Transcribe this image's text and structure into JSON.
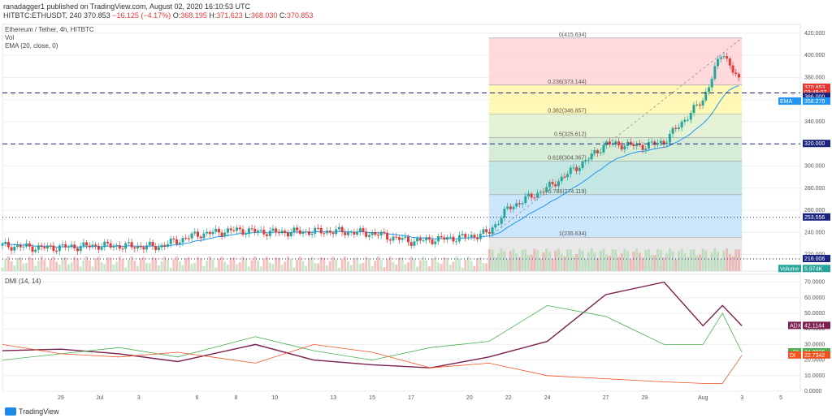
{
  "header": {
    "publisher": "ranadagger1 published on TradingView.com, August 02, 2020 16:10:53 UTC",
    "ticker": "HITBTC:ETHUSDT, 240",
    "last": "370.853",
    "change": "−16.125 (−4.17%)",
    "o_label": "O:",
    "o": "368.195",
    "h_label": "H:",
    "h": "371.623",
    "l_label": "L:",
    "l": "368.030",
    "c_label": "C:",
    "c": "370.853"
  },
  "legend": {
    "title": "Ethereum / Tether, 4h, HITBTC",
    "vol": "Vol",
    "ema": "EMA (20, close, 0)",
    "dmi": "DMI (14, 14)"
  },
  "colors": {
    "up": "#26a69a",
    "down": "#e53935",
    "hline": "#1a237e",
    "ema": "#2196f3",
    "adx": "#7b1f4f",
    "plus_di": "#4caf50",
    "minus_di": "#f4511e"
  },
  "chart_data": [
    {
      "type": "candlestick",
      "title": "Ethereum / Tether, 4h, HITBTC",
      "ylim": [
        205,
        428
      ],
      "y_ticks": [
        "420.000",
        "400.000",
        "380.000",
        "360.000",
        "340.000",
        "320.000",
        "300.000",
        "280.000",
        "260.000",
        "240.000",
        "220.000"
      ],
      "x_ticks": [
        "29",
        "Jul",
        "3",
        "6",
        "8",
        "10",
        "13",
        "15",
        "17",
        "20",
        "22",
        "24",
        "27",
        "29",
        "Aug",
        "3",
        "5"
      ],
      "x_range": [
        "2020-06-26",
        "2020-08-06"
      ],
      "ohlc_anchors": [
        {
          "x": "2020-06-26",
          "c": 228
        },
        {
          "x": "2020-06-28",
          "c": 226
        },
        {
          "x": "2020-07-01",
          "c": 228
        },
        {
          "x": "2020-07-04",
          "c": 227
        },
        {
          "x": "2020-07-06",
          "c": 238
        },
        {
          "x": "2020-07-08",
          "c": 242
        },
        {
          "x": "2020-07-10",
          "c": 240
        },
        {
          "x": "2020-07-13",
          "c": 241
        },
        {
          "x": "2020-07-15",
          "c": 239
        },
        {
          "x": "2020-07-17",
          "c": 232
        },
        {
          "x": "2020-07-20",
          "c": 236
        },
        {
          "x": "2020-07-21",
          "c": 240
        },
        {
          "x": "2020-07-22",
          "c": 262
        },
        {
          "x": "2020-07-24",
          "c": 280
        },
        {
          "x": "2020-07-26",
          "c": 305
        },
        {
          "x": "2020-07-27",
          "c": 320
        },
        {
          "x": "2020-07-29",
          "c": 318
        },
        {
          "x": "2020-07-30",
          "c": 322
        },
        {
          "x": "2020-08-01",
          "c": 360
        },
        {
          "x": "2020-08-02",
          "c": 404
        },
        {
          "x": "2020-08-03",
          "c": 371
        }
      ],
      "horizontal_lines": [
        {
          "label": "366.000",
          "value": 366.0,
          "style": "dashed"
        },
        {
          "label": "320.000",
          "value": 320.0,
          "style": "dashed"
        },
        {
          "label": "253.556",
          "value": 253.556,
          "style": "dotted"
        },
        {
          "label": "216.006",
          "value": 216.006,
          "style": "dotted"
        }
      ],
      "fibonacci": {
        "levels": [
          {
            "label": "0(415.634)",
            "value": 415.634,
            "fill": "#ffcdd2"
          },
          {
            "label": "0.236(373.144)",
            "value": 373.144,
            "fill": "#fff59d"
          },
          {
            "label": "0.382(346.857)",
            "value": 346.857,
            "fill": "#dcedc8"
          },
          {
            "label": "0.5(325.612)",
            "value": 325.612,
            "fill": "#c8e6c9"
          },
          {
            "label": "0.618(304.367)",
            "value": 304.367,
            "fill": "#b2dfdb"
          },
          {
            "label": "0.786(274.119)",
            "value": 274.119,
            "fill": "#bbdefb"
          },
          {
            "label": "1(235.634)",
            "value": 235.634,
            "fill": "#e0e0e0"
          }
        ],
        "x_start": "2020-07-21",
        "x_end": "2020-08-03"
      },
      "price_tags": [
        {
          "label": "370.853",
          "value": 370.853,
          "color": "#e53935"
        },
        {
          "label": "03:49:07",
          "value": 366.5,
          "color": "#e53935"
        },
        {
          "label": "366.000",
          "value": 362.5,
          "color": "#1a237e"
        },
        {
          "label": "EMA",
          "value": 358.279,
          "color": "#2196f3"
        },
        {
          "label": "358.279",
          "value": 358.279,
          "color": "#2196f3"
        },
        {
          "label": "320.000",
          "value": 320.0,
          "color": "#1a237e"
        },
        {
          "label": "253.556",
          "value": 253.556,
          "color": "#1a237e"
        },
        {
          "label": "216.006",
          "value": 216.006,
          "color": "#1a237e"
        },
        {
          "label": "Volume",
          "value": 207,
          "color": "#26a69a"
        },
        {
          "label": "5.974K",
          "value": 207,
          "color": "#26a69a"
        }
      ]
    },
    {
      "type": "line",
      "title": "DMI (14, 14)",
      "ylim": [
        0,
        75
      ],
      "y_ticks": [
        "70.0000",
        "60.0000",
        "50.0000",
        "40.0000",
        "30.0000",
        "20.0000",
        "10.0000",
        "0.0000"
      ],
      "series": [
        {
          "name": "ADX",
          "last": "42.1144",
          "x": [
            "2020-06-26",
            "2020-06-29",
            "2020-07-02",
            "2020-07-05",
            "2020-07-09",
            "2020-07-12",
            "2020-07-15",
            "2020-07-18",
            "2020-07-21",
            "2020-07-24",
            "2020-07-27",
            "2020-07-30",
            "2020-08-01",
            "2020-08-02",
            "2020-08-03"
          ],
          "values": [
            26,
            27,
            24,
            19,
            30,
            20,
            17,
            15,
            22,
            32,
            62,
            70,
            42,
            55,
            42
          ]
        },
        {
          "name": "+DI",
          "last": "24.8936",
          "x": [
            "2020-06-26",
            "2020-06-29",
            "2020-07-02",
            "2020-07-05",
            "2020-07-09",
            "2020-07-12",
            "2020-07-15",
            "2020-07-18",
            "2020-07-21",
            "2020-07-24",
            "2020-07-27",
            "2020-07-30",
            "2020-08-01",
            "2020-08-02",
            "2020-08-03"
          ],
          "values": [
            20,
            24,
            28,
            22,
            35,
            26,
            20,
            28,
            32,
            55,
            48,
            30,
            30,
            50,
            25
          ]
        },
        {
          "name": "DI",
          "last": "22.7342",
          "x": [
            "2020-06-26",
            "2020-06-29",
            "2020-07-02",
            "2020-07-05",
            "2020-07-09",
            "2020-07-12",
            "2020-07-15",
            "2020-07-18",
            "2020-07-21",
            "2020-07-24",
            "2020-07-27",
            "2020-07-30",
            "2020-08-01",
            "2020-08-02",
            "2020-08-03"
          ],
          "values": [
            30,
            24,
            22,
            25,
            18,
            30,
            25,
            15,
            18,
            10,
            8,
            6,
            5,
            5,
            23
          ]
        }
      ]
    }
  ],
  "footer": {
    "brand": "TradingView"
  }
}
